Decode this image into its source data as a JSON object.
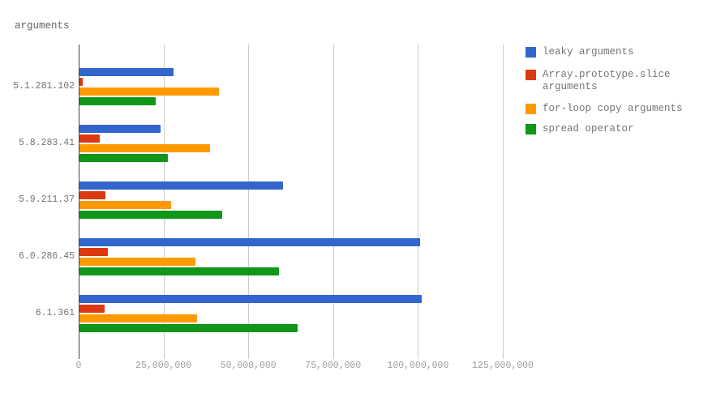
{
  "chart_data": {
    "type": "bar",
    "orientation": "horizontal",
    "title": "arguments",
    "categories": [
      "5.1.281.102",
      "5.8.283.41",
      "5.9.211.37",
      "6.0.286.45",
      "6.1.361"
    ],
    "series": [
      {
        "name": "leaky arguments",
        "color": "#3366cc",
        "values": [
          27700000,
          23900000,
          60200000,
          100600000,
          101100000
        ]
      },
      {
        "name": "Array.prototype.slice arguments",
        "color": "#dc3912",
        "values": [
          1000000,
          6000000,
          7600000,
          8400000,
          7400000
        ]
      },
      {
        "name": "for-loop copy arguments",
        "color": "#ff9900",
        "values": [
          41100000,
          38500000,
          27000000,
          34200000,
          34700000
        ]
      },
      {
        "name": "spread operator",
        "color": "#109618",
        "values": [
          22500000,
          26100000,
          42100000,
          59000000,
          64300000
        ]
      }
    ],
    "xlim": [
      0,
      125000000
    ],
    "x_ticks": [
      0,
      25000000,
      50000000,
      75000000,
      100000000,
      125000000
    ],
    "x_tick_labels": [
      "0",
      "25,000,000",
      "50,000,000",
      "75,000,000",
      "100,000,000",
      "125,000,000"
    ],
    "grid": true,
    "legend_position": "right",
    "axis_color": "#424242",
    "gridline_color": "#cccccc"
  }
}
